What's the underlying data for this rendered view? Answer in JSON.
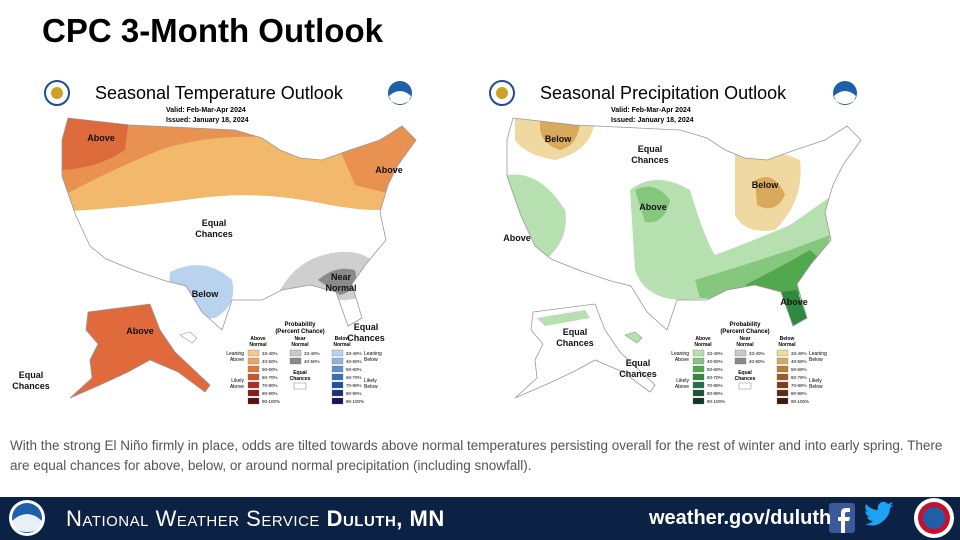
{
  "title": "CPC 3-Month Outlook",
  "maps": [
    {
      "title": "Seasonal Temperature Outlook",
      "valid": "Valid:  Feb-Mar-Apr 2024",
      "issued": "Issued:  January 18, 2024",
      "labels": [
        [
          "Above"
        ],
        [
          "Above"
        ],
        [
          "Equal",
          "Chances"
        ],
        [
          "Below"
        ],
        [
          "Near",
          "Normal"
        ],
        [
          "Above"
        ],
        [
          "Equal",
          "Chances"
        ],
        [
          "Equal",
          "Chances"
        ]
      ],
      "legend": {
        "title": "Probability",
        "subtitle": "(Percent Chance)",
        "columns": [
          {
            "header": [
              "Above",
              "Normal"
            ],
            "ranges": [
              "33-40%",
              "40-50%",
              "50-60%",
              "60-70%",
              "70-80%",
              "80-90%",
              "90-100%"
            ],
            "colors": [
              "#f5c98b",
              "#eda65e",
              "#e1793f",
              "#d45130",
              "#b22a24",
              "#8c1a1c",
              "#5e0e12"
            ]
          },
          {
            "header": [
              "Near",
              "Normal"
            ],
            "ranges": [
              "33-40%",
              "40-50%"
            ],
            "colors": [
              "#c9c9c9",
              "#8a8a8a"
            ]
          },
          {
            "header": [
              "Below",
              "Normal"
            ],
            "ranges": [
              "33-40%",
              "40-50%",
              "50-60%",
              "60-70%",
              "70-80%",
              "80-90%",
              "90-100%"
            ],
            "colors": [
              "#b9d2ee",
              "#8fb4e0",
              "#5d92cf",
              "#3570b5",
              "#23509a",
              "#1d2f7a",
              "#1a145a"
            ]
          }
        ],
        "left": [
          [
            "Leaning",
            "Above"
          ],
          [
            "Likely",
            "Above"
          ]
        ],
        "right": [
          [
            "Leaning",
            "Below"
          ],
          [
            "Likely",
            "Below"
          ]
        ],
        "equal": [
          "Equal",
          "Chances"
        ]
      }
    },
    {
      "title": "Seasonal Precipitation Outlook",
      "valid": "Valid:  Feb-Mar-Apr 2024",
      "issued": "Issued:  January 18, 2024",
      "labels": [
        [
          "Below"
        ],
        [
          "Equal",
          "Chances"
        ],
        [
          "Above"
        ],
        [
          "Above"
        ],
        [
          "Below"
        ],
        [
          "Above"
        ],
        [
          "Equal",
          "Chances"
        ],
        [
          "Equal",
          "Chances"
        ]
      ],
      "legend": {
        "title": "Probability",
        "subtitle": "(Percent Chance)",
        "columns": [
          {
            "header": [
              "Above",
              "Normal"
            ],
            "ranges": [
              "33-40%",
              "40-50%",
              "50-60%",
              "60-70%",
              "70-80%",
              "80-90%",
              "90-100%"
            ],
            "colors": [
              "#b7e0b0",
              "#86c77e",
              "#52a94d",
              "#2f8a3f",
              "#256d4a",
              "#1d503b",
              "#123528"
            ]
          },
          {
            "header": [
              "Near",
              "Normal"
            ],
            "ranges": [
              "33-40%",
              "40-50%"
            ],
            "colors": [
              "#c9c9c9",
              "#8a8a8a"
            ]
          },
          {
            "header": [
              "Below",
              "Normal"
            ],
            "ranges": [
              "33-40%",
              "40-50%",
              "50-60%",
              "60-70%",
              "70-80%",
              "80-90%",
              "90-100%"
            ],
            "colors": [
              "#f0d9a0",
              "#d9aa5c",
              "#bd7d35",
              "#9d5a26",
              "#7d3e1c",
              "#5e2a14",
              "#3e1a0c"
            ]
          }
        ],
        "left": [
          [
            "Leaning",
            "Above"
          ],
          [
            "Likely",
            "Above"
          ]
        ],
        "right": [
          [
            "Leaning",
            "Below"
          ],
          [
            "Likely",
            "Below"
          ]
        ],
        "equal": [
          "Equal",
          "Chances"
        ]
      }
    }
  ],
  "caption": "With the strong El Niño firmly in place, odds are tilted towards above normal temperatures persisting overall for the rest of winter and into early spring. There are equal chances for above, below, or around normal precipitation (including snowfall).",
  "footer": {
    "agency": "National Weather Service",
    "office": "Duluth, MN",
    "url": "weather.gov/duluth"
  }
}
